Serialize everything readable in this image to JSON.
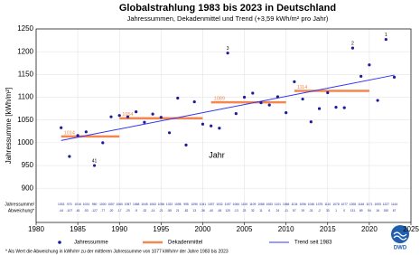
{
  "chart_data": {
    "type": "scatter",
    "title": "Globalstrahlung 1983 bis 2023 in Deutschland",
    "subtitle": "Jahressummen, Dekadenmittel und Trend (+3,59 kWh/m² pro Jahr)",
    "x_label": "Jahr",
    "y_label": "Jahressumme [kWh/m²]",
    "xlim": [
      1980,
      2025
    ],
    "xticks": [
      1980,
      1985,
      1990,
      1995,
      2000,
      2005,
      2010,
      2015,
      2020,
      2025
    ],
    "ylim": [
      825,
      1250
    ],
    "yticks": [
      900,
      950,
      1000,
      1050,
      1100,
      1150,
      1200,
      1250
    ],
    "grid": true,
    "series": [
      {
        "name": "Jahressumme",
        "color": "#1c1c9c",
        "x": [
          1983,
          1984,
          1985,
          1986,
          1987,
          1988,
          1989,
          1990,
          1991,
          1992,
          1993,
          1994,
          1995,
          1996,
          1997,
          1998,
          1999,
          2000,
          2001,
          2002,
          2003,
          2004,
          2005,
          2006,
          2007,
          2008,
          2009,
          2010,
          2011,
          2012,
          2013,
          2014,
          2015,
          2016,
          2017,
          2018,
          2019,
          2020,
          2021,
          2022,
          2023
        ],
        "values": [
          1033,
          970,
          1016,
          1024,
          950,
          1000,
          1057,
          1060,
          1057,
          1068,
          1045,
          1063,
          1056,
          1022,
          1098,
          995,
          1090,
          1041,
          1037,
          1032,
          1197,
          1064,
          1100,
          1109,
          1088,
          1083,
          1101,
          1066,
          1134,
          1096,
          1046,
          1075,
          1110,
          1078,
          1077,
          1208,
          1146,
          1171,
          1093,
          1227,
          1144
        ]
      }
    ],
    "deviations": [
      -44,
      -107,
      -61,
      -53,
      -127,
      -77,
      -20,
      -17,
      -20,
      -9,
      -32,
      -14,
      -21,
      -55,
      21,
      -82,
      13,
      -36,
      -40,
      -45,
      120,
      -13,
      23,
      32,
      11,
      6,
      24,
      -11,
      57,
      19,
      -31,
      -2,
      33,
      1,
      0,
      131,
      69,
      94,
      16,
      150,
      67
    ],
    "table_label": [
      "Jahressumme/",
      "Abweichung*"
    ],
    "ranks": [
      {
        "x": 1987,
        "rank": 41
      },
      {
        "x": 2003,
        "rank": 3
      },
      {
        "x": 2018,
        "rank": 2
      },
      {
        "x": 2022,
        "rank": 1
      }
    ],
    "decade_means": {
      "name": "Dekadenmittel",
      "color": "#f4874f",
      "ranges": [
        [
          1983,
          1990
        ],
        [
          1990,
          2000
        ],
        [
          2001,
          2010
        ],
        [
          2011,
          2020
        ]
      ],
      "values": [
        1014,
        1054,
        1089,
        1114
      ]
    },
    "trend": {
      "name": "Trend seit 1983",
      "color": "#3434f0",
      "x": [
        1983,
        2023
      ],
      "values": [
        1005,
        1148.6
      ]
    },
    "footnote": "* Als Wert die Abweichung in kWh/m² zu der mittleren Jahressumme von 1077 kWh/m² der Jahre 1983 bis 2023",
    "logo": "DWD"
  }
}
